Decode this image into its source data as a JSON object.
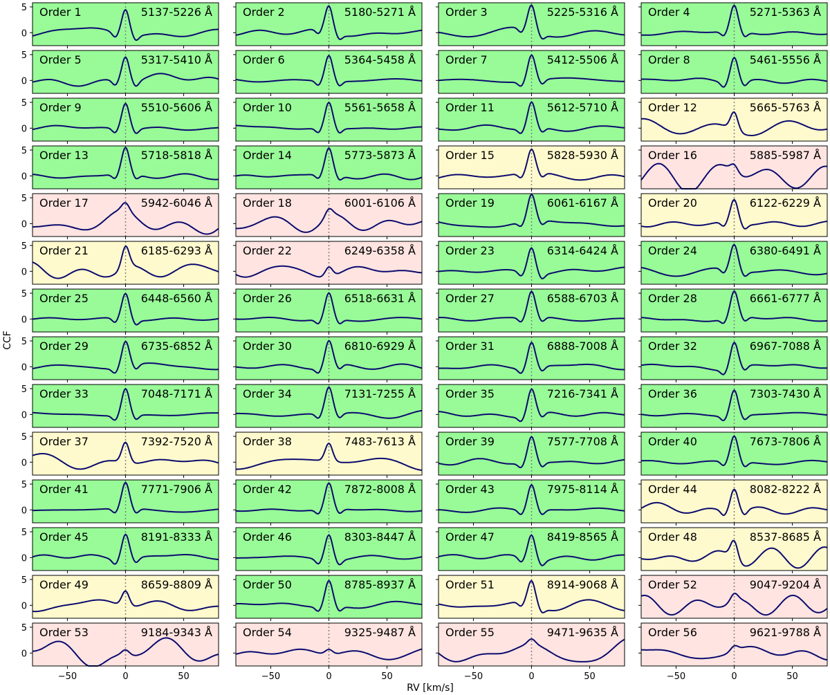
{
  "figure": {
    "xlabel": "RV [km/s]",
    "ylabel": "CCF",
    "rows": 14,
    "cols": 4,
    "xlim": [
      -80,
      80
    ],
    "ylim": [
      -2.5,
      5.8
    ],
    "x_ticks": [
      -50,
      0,
      50
    ],
    "y_ticks": [
      0,
      5
    ],
    "bottom_tick_labels": [
      "−50",
      "0",
      "50"
    ],
    "left_tick_labels": [
      "0",
      "5"
    ],
    "zero_line": "dotted",
    "colors": {
      "green": "#98fb98",
      "yellow": "#fffacd",
      "red": "#ffe4e1",
      "ccf_line": "#0a0a6e",
      "zero_line": "#808080"
    }
  },
  "chart_data": {
    "type": "line",
    "x_range": [
      -80,
      80
    ],
    "panels": [
      {
        "title": "Order 1",
        "range": "5137-5226 Å",
        "bg": "green",
        "peak": 5.0,
        "noise": 0.5
      },
      {
        "title": "Order 2",
        "range": "5180-5271 Å",
        "bg": "green",
        "peak": 5.0,
        "noise": 0.5
      },
      {
        "title": "Order 3",
        "range": "5225-5316 Å",
        "bg": "green",
        "peak": 5.0,
        "noise": 0.5
      },
      {
        "title": "Order 4",
        "range": "5271-5363 Å",
        "bg": "green",
        "peak": 5.0,
        "noise": 0.5
      },
      {
        "title": "Order 5",
        "range": "5317-5410 Å",
        "bg": "green",
        "peak": 5.0,
        "noise": 0.6
      },
      {
        "title": "Order 6",
        "range": "5364-5458 Å",
        "bg": "green",
        "peak": 5.0,
        "noise": 0.5
      },
      {
        "title": "Order 7",
        "range": "5412-5506 Å",
        "bg": "green",
        "peak": 5.0,
        "noise": 0.4
      },
      {
        "title": "Order 8",
        "range": "5461-5556 Å",
        "bg": "green",
        "peak": 5.0,
        "noise": 0.4
      },
      {
        "title": "Order 9",
        "range": "5510-5606 Å",
        "bg": "green",
        "peak": 5.0,
        "noise": 0.3
      },
      {
        "title": "Order 10",
        "range": "5561-5658 Å",
        "bg": "green",
        "peak": 5.0,
        "noise": 0.3
      },
      {
        "title": "Order 11",
        "range": "5612-5710 Å",
        "bg": "green",
        "peak": 5.0,
        "noise": 0.5
      },
      {
        "title": "Order 12",
        "range": "5665-5763 Å",
        "bg": "yellow",
        "peak": 3.5,
        "noise": 1.2
      },
      {
        "title": "Order 13",
        "range": "5718-5818 Å",
        "bg": "green",
        "peak": 5.0,
        "noise": 0.6
      },
      {
        "title": "Order 14",
        "range": "5773-5873 Å",
        "bg": "green",
        "peak": 5.0,
        "noise": 0.5
      },
      {
        "title": "Order 15",
        "range": "5828-5930 Å",
        "bg": "yellow",
        "peak": 4.5,
        "noise": 0.8
      },
      {
        "title": "Order 16",
        "range": "5885-5987 Å",
        "bg": "red",
        "peak": 1.5,
        "noise": 1.5
      },
      {
        "title": "Order 17",
        "range": "5942-6046 Å",
        "bg": "red",
        "peak": 1.5,
        "noise": 1.5
      },
      {
        "title": "Order 18",
        "range": "6001-6106 Å",
        "bg": "red",
        "peak": 1.5,
        "noise": 1.4
      },
      {
        "title": "Order 19",
        "range": "6061-6167 Å",
        "bg": "green",
        "peak": 5.0,
        "noise": 0.6
      },
      {
        "title": "Order 20",
        "range": "6122-6229 Å",
        "bg": "yellow",
        "peak": 4.5,
        "noise": 0.8
      },
      {
        "title": "Order 21",
        "range": "6185-6293 Å",
        "bg": "yellow",
        "peak": 4.2,
        "noise": 1.1
      },
      {
        "title": "Order 22",
        "range": "6249-6358 Å",
        "bg": "red",
        "peak": 2.0,
        "noise": 1.2
      },
      {
        "title": "Order 23",
        "range": "6314-6424 Å",
        "bg": "green",
        "peak": 5.0,
        "noise": 0.5
      },
      {
        "title": "Order 24",
        "range": "6380-6491 Å",
        "bg": "green",
        "peak": 5.0,
        "noise": 0.5
      },
      {
        "title": "Order 25",
        "range": "6448-6560 Å",
        "bg": "green",
        "peak": 5.0,
        "noise": 0.4
      },
      {
        "title": "Order 26",
        "range": "6518-6631 Å",
        "bg": "green",
        "peak": 5.0,
        "noise": 0.3
      },
      {
        "title": "Order 27",
        "range": "6588-6703 Å",
        "bg": "green",
        "peak": 5.0,
        "noise": 0.4
      },
      {
        "title": "Order 28",
        "range": "6661-6777 Å",
        "bg": "green",
        "peak": 5.0,
        "noise": 0.4
      },
      {
        "title": "Order 29",
        "range": "6735-6852 Å",
        "bg": "green",
        "peak": 5.0,
        "noise": 0.4
      },
      {
        "title": "Order 30",
        "range": "6810-6929 Å",
        "bg": "green",
        "peak": 5.0,
        "noise": 0.5
      },
      {
        "title": "Order 31",
        "range": "6888-7008 Å",
        "bg": "green",
        "peak": 5.0,
        "noise": 0.5
      },
      {
        "title": "Order 32",
        "range": "6967-7088 Å",
        "bg": "green",
        "peak": 5.0,
        "noise": 0.4
      },
      {
        "title": "Order 33",
        "range": "7048-7171 Å",
        "bg": "green",
        "peak": 5.2,
        "noise": 0.3
      },
      {
        "title": "Order 34",
        "range": "7131-7255 Å",
        "bg": "green",
        "peak": 5.2,
        "noise": 0.4
      },
      {
        "title": "Order 35",
        "range": "7216-7341 Å",
        "bg": "green",
        "peak": 5.0,
        "noise": 0.4
      },
      {
        "title": "Order 36",
        "range": "7303-7430 Å",
        "bg": "green",
        "peak": 5.0,
        "noise": 0.4
      },
      {
        "title": "Order 37",
        "range": "7392-7520 Å",
        "bg": "yellow",
        "peak": 4.0,
        "noise": 1.0
      },
      {
        "title": "Order 38",
        "range": "7483-7613 Å",
        "bg": "yellow",
        "peak": 3.5,
        "noise": 1.0
      },
      {
        "title": "Order 39",
        "range": "7577-7708 Å",
        "bg": "green",
        "peak": 5.0,
        "noise": 0.5
      },
      {
        "title": "Order 40",
        "range": "7673-7806 Å",
        "bg": "green",
        "peak": 5.0,
        "noise": 0.3
      },
      {
        "title": "Order 41",
        "range": "7771-7906 Å",
        "bg": "green",
        "peak": 5.0,
        "noise": 0.3
      },
      {
        "title": "Order 42",
        "range": "7872-8008 Å",
        "bg": "green",
        "peak": 5.0,
        "noise": 0.3
      },
      {
        "title": "Order 43",
        "range": "7975-8114 Å",
        "bg": "green",
        "peak": 5.0,
        "noise": 0.4
      },
      {
        "title": "Order 44",
        "range": "8082-8222 Å",
        "bg": "yellow",
        "peak": 4.5,
        "noise": 1.0
      },
      {
        "title": "Order 45",
        "range": "8191-8333 Å",
        "bg": "green",
        "peak": 5.0,
        "noise": 0.5
      },
      {
        "title": "Order 46",
        "range": "8303-8447 Å",
        "bg": "green",
        "peak": 5.0,
        "noise": 0.4
      },
      {
        "title": "Order 47",
        "range": "8419-8565 Å",
        "bg": "green",
        "peak": 5.0,
        "noise": 0.5
      },
      {
        "title": "Order 48",
        "range": "8537-8685 Å",
        "bg": "yellow",
        "peak": 3.8,
        "noise": 1.2
      },
      {
        "title": "Order 49",
        "range": "8659-8809 Å",
        "bg": "yellow",
        "peak": 3.0,
        "noise": 1.2
      },
      {
        "title": "Order 50",
        "range": "8785-8937 Å",
        "bg": "green",
        "peak": 5.0,
        "noise": 0.4
      },
      {
        "title": "Order 51",
        "range": "8914-9068 Å",
        "bg": "yellow",
        "peak": 4.5,
        "noise": 1.1
      },
      {
        "title": "Order 52",
        "range": "9047-9204 Å",
        "bg": "red",
        "peak": 1.5,
        "noise": 1.5
      },
      {
        "title": "Order 53",
        "range": "9184-9343 Å",
        "bg": "red",
        "peak": 1.0,
        "noise": 1.4
      },
      {
        "title": "Order 54",
        "range": "9325-9487 Å",
        "bg": "red",
        "peak": 1.0,
        "noise": 1.3
      },
      {
        "title": "Order 55",
        "range": "9471-9635 Å",
        "bg": "red",
        "peak": 1.0,
        "noise": 1.4
      },
      {
        "title": "Order 56",
        "range": "9621-9788 Å",
        "bg": "red",
        "peak": 1.0,
        "noise": 1.3
      }
    ]
  }
}
